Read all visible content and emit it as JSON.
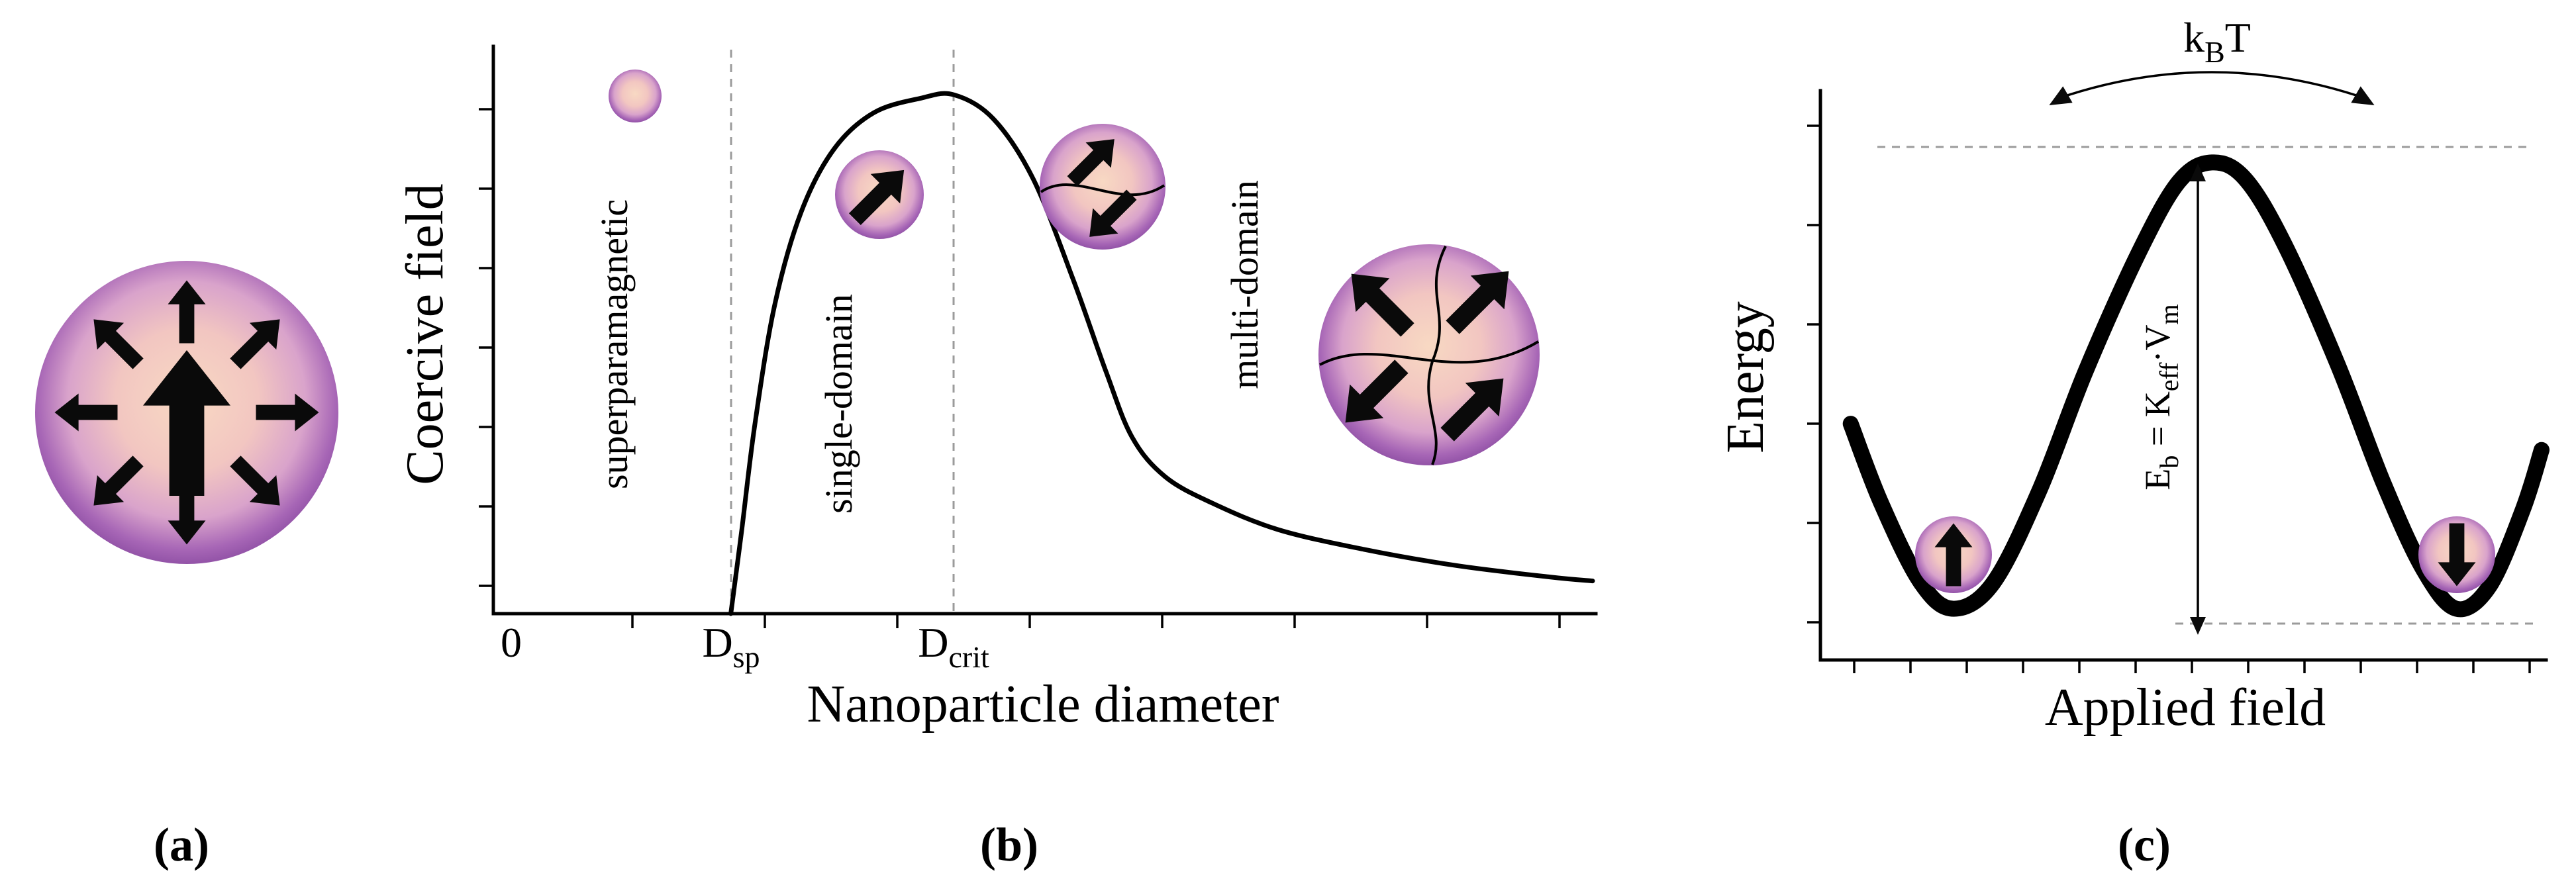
{
  "panels": {
    "a": {
      "label": "(a)"
    },
    "b": {
      "label": "(b)",
      "ylabel": "Coercive field",
      "xlabel": "Nanoparticle diameter",
      "origin_tick": "0",
      "dsp": {
        "base": "D",
        "sub": "sp"
      },
      "dcrit": {
        "base": "D",
        "sub": "crit"
      },
      "regions": {
        "superparamagnetic": "superparamagnetic",
        "single_domain": "single-domain",
        "multi_domain": "multi-domain"
      }
    },
    "c": {
      "label": "(c)",
      "ylabel": "Energy",
      "xlabel": "Applied field",
      "kbt": {
        "p1": "k",
        "sub1": "B",
        "p2": "T"
      },
      "eb": {
        "p1": "E",
        "sub1": "b",
        "p2": " = K",
        "sub2": "eff",
        "p3": "·V",
        "sub3": "m"
      }
    }
  },
  "chart_data": [
    {
      "type": "line",
      "title": "",
      "xlabel": "Nanoparticle diameter",
      "ylabel": "Coercive field",
      "x_tick_labels": [
        "0",
        "Dsp",
        "Dcrit"
      ],
      "region_labels": [
        "superparamagnetic",
        "single-domain",
        "multi-domain"
      ],
      "description": "Coercive field versus nanoparticle diameter: zero below Dsp (superparamagnetic regime), rising steeply through the single-domain regime to a maximum at Dcrit, then decaying in the multi-domain regime.",
      "points_norm": [
        [
          0.216,
          0.0
        ],
        [
          0.226,
          0.149
        ],
        [
          0.238,
          0.337
        ],
        [
          0.256,
          0.548
        ],
        [
          0.28,
          0.712
        ],
        [
          0.31,
          0.824
        ],
        [
          0.346,
          0.888
        ],
        [
          0.389,
          0.914
        ],
        [
          0.419,
          0.92
        ],
        [
          0.455,
          0.877
        ],
        [
          0.491,
          0.771
        ],
        [
          0.527,
          0.595
        ],
        [
          0.557,
          0.431
        ],
        [
          0.581,
          0.313
        ],
        [
          0.611,
          0.243
        ],
        [
          0.654,
          0.196
        ],
        [
          0.714,
          0.149
        ],
        [
          0.792,
          0.114
        ],
        [
          0.877,
          0.085
        ],
        [
          0.961,
          0.065
        ],
        [
          1.0,
          0.058
        ]
      ]
    },
    {
      "type": "line",
      "title": "",
      "xlabel": "Applied field",
      "ylabel": "Energy",
      "annotations": [
        "kBT",
        "Eb = Keff·Vm"
      ],
      "description": "Double-well energy landscape: spin-up and spin-down minima separated by an energy barrier Eb = Keff·Vm; thermal energy kBT allows hopping over the barrier.",
      "points_norm": [
        [
          0.042,
          0.415
        ],
        [
          0.084,
          0.276
        ],
        [
          0.139,
          0.136
        ],
        [
          0.185,
          0.09
        ],
        [
          0.24,
          0.136
        ],
        [
          0.304,
          0.299
        ],
        [
          0.368,
          0.508
        ],
        [
          0.442,
          0.717
        ],
        [
          0.497,
          0.84
        ],
        [
          0.543,
          0.874
        ],
        [
          0.589,
          0.845
        ],
        [
          0.644,
          0.729
        ],
        [
          0.717,
          0.52
        ],
        [
          0.781,
          0.31
        ],
        [
          0.836,
          0.159
        ],
        [
          0.882,
          0.09
        ],
        [
          0.928,
          0.13
        ],
        [
          0.974,
          0.264
        ],
        [
          1.0,
          0.369
        ]
      ]
    }
  ]
}
